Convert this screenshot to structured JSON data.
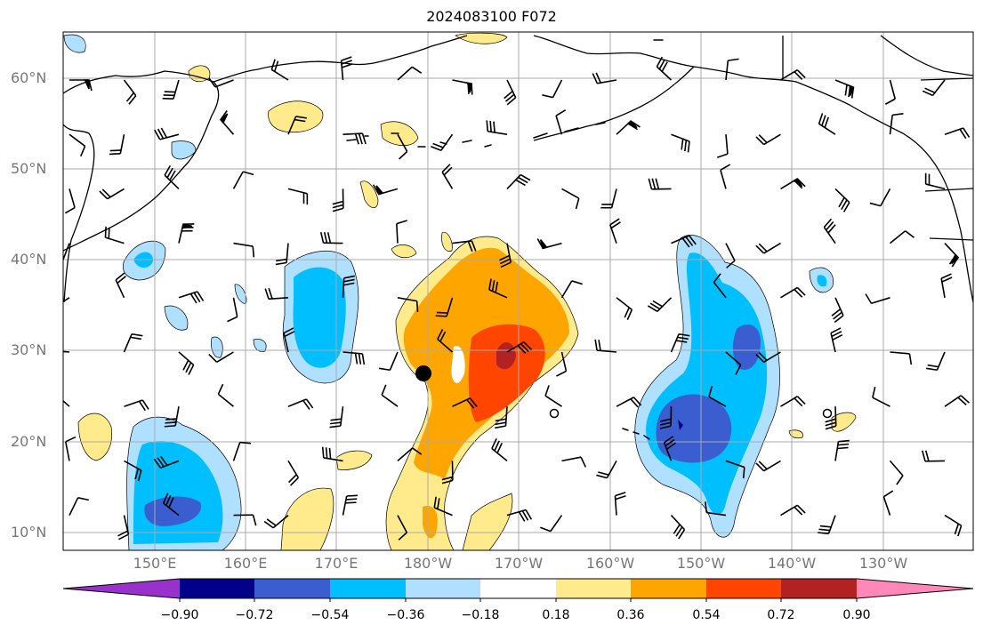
{
  "title": "2024083100 F072",
  "map": {
    "lat_labels": [
      "60°N",
      "50°N",
      "40°N",
      "30°N",
      "20°N",
      "10°N"
    ],
    "lon_labels": [
      "150°E",
      "160°E",
      "170°E",
      "180°W",
      "170°W",
      "160°W",
      "150°W",
      "140°W",
      "130°W"
    ],
    "gridlines": true,
    "markers": [
      "filled-circle-marker",
      "open-circle-marker",
      "open-circle-marker"
    ]
  },
  "colorbar": {
    "tick_labels": [
      "−0.90",
      "−0.72",
      "−0.54",
      "−0.36",
      "−0.18",
      "0.18",
      "0.36",
      "0.54",
      "0.72",
      "0.90"
    ],
    "colors": [
      "#9932cc",
      "#00008b",
      "#3a5ed0",
      "#00bfff",
      "#b0e0ff",
      "#ffffff",
      "#ffea8c",
      "#ffa500",
      "#ff4500",
      "#b22222",
      "#ff88b8"
    ],
    "extend": "both"
  }
}
